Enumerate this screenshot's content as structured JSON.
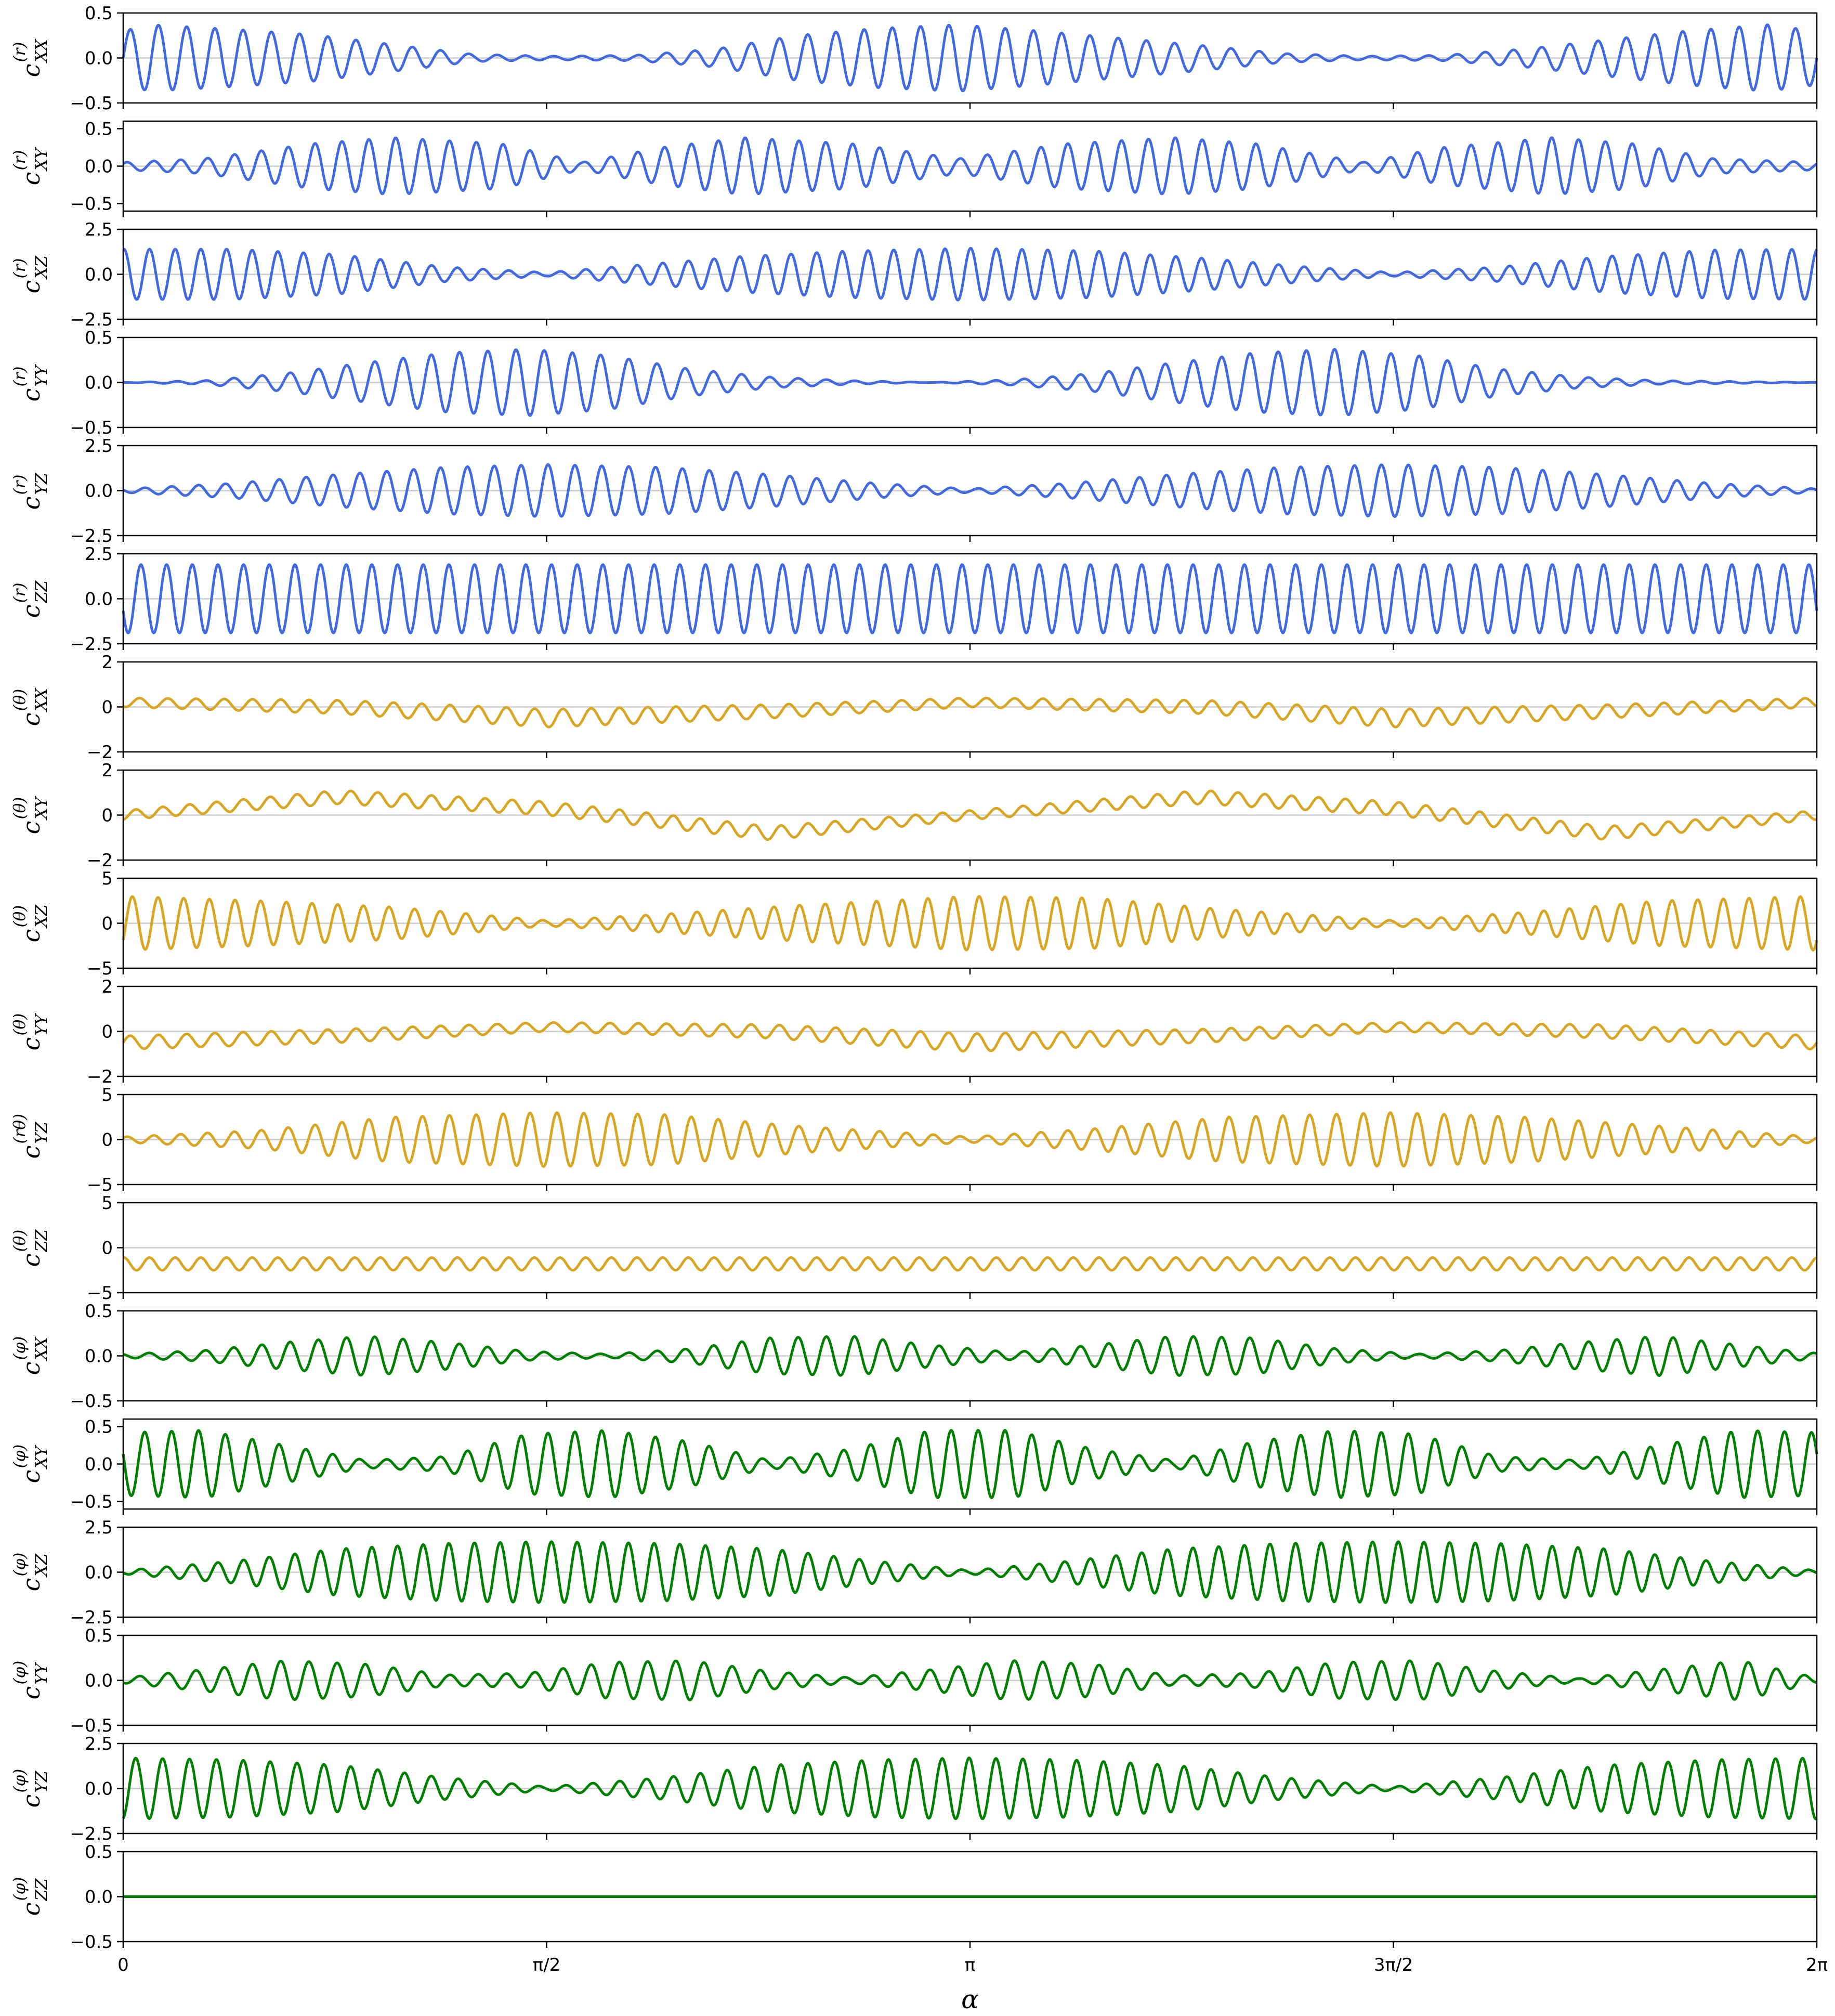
{
  "chart_data": {
    "type": "line",
    "layout": "18 stacked subplots sharing the x-axis",
    "xlabel": "α",
    "xlim": [
      0,
      6.283185307
    ],
    "xticks": [
      {
        "value": 0,
        "label": "0"
      },
      {
        "value": 1.570796327,
        "label": "π/2"
      },
      {
        "value": 3.141592654,
        "label": "π"
      },
      {
        "value": 4.71238898,
        "label": "3π/2"
      },
      {
        "value": 6.283185307,
        "label": "2π"
      }
    ],
    "zero_reference_line": "light gray line at y = 0",
    "colors": {
      "r": "#4169E1",
      "theta": "#DAA520",
      "phi": "#008000",
      "zero_line": "#cccccc"
    },
    "panels": [
      {
        "ylabel": {
          "base": "c",
          "sup": "(r)",
          "sub": "XX"
        },
        "color": "#4169E1",
        "ylim": [
          -0.5,
          0.5
        ],
        "yticks": [
          "0.5",
          "0.0",
          "−0.5"
        ],
        "series": {
          "x": [
            0.0,
            0.1,
            0.4,
            0.7,
            1.0,
            1.3,
            1.6,
            1.9,
            2.2,
            2.5,
            2.8,
            3.1,
            3.4,
            3.7,
            4.0,
            4.3,
            4.6,
            4.9,
            5.2,
            5.5,
            5.8,
            6.1,
            6.28
          ],
          "amplitude": [
            0.3,
            0.37,
            0.32,
            0.26,
            0.15,
            0.04,
            0.02,
            0.03,
            0.1,
            0.25,
            0.33,
            0.37,
            0.3,
            0.22,
            0.14,
            0.05,
            0.02,
            0.03,
            0.1,
            0.2,
            0.3,
            0.37,
            0.3
          ]
        }
      },
      {
        "ylabel": {
          "base": "c",
          "sup": "(r)",
          "sub": "XY"
        },
        "color": "#4169E1",
        "ylim": [
          -0.6,
          0.6
        ],
        "yticks": [
          "0.5",
          "0.0",
          "−0.5"
        ],
        "series": {
          "x": [
            0.0,
            0.3,
            0.7,
            1.0,
            1.4,
            1.7,
            2.0,
            2.3,
            2.7,
            3.1,
            3.5,
            3.9,
            4.2,
            4.6,
            4.9,
            5.3,
            5.6,
            5.9,
            6.28
          ],
          "amplitude": [
            0.05,
            0.1,
            0.3,
            0.38,
            0.3,
            0.05,
            0.25,
            0.38,
            0.3,
            0.1,
            0.3,
            0.38,
            0.3,
            0.05,
            0.25,
            0.38,
            0.3,
            0.1,
            0.05
          ]
        }
      },
      {
        "ylabel": {
          "base": "c",
          "sup": "(r)",
          "sub": "XZ"
        },
        "color": "#4169E1",
        "ylim": [
          -2.5,
          2.5
        ],
        "yticks": [
          "2.5",
          "0.0",
          "−2.5"
        ],
        "series": {
          "x": [
            0.0,
            0.4,
            0.8,
            1.2,
            1.57,
            1.9,
            2.3,
            2.7,
            3.14,
            3.6,
            4.0,
            4.4,
            4.71,
            5.1,
            5.5,
            5.9,
            6.28
          ],
          "amplitude": [
            1.4,
            1.4,
            1.1,
            0.4,
            0.1,
            0.5,
            1.0,
            1.3,
            1.45,
            1.3,
            0.9,
            0.4,
            0.1,
            0.4,
            1.0,
            1.35,
            1.4
          ]
        }
      },
      {
        "ylabel": {
          "base": "c",
          "sup": "(r)",
          "sub": "YY"
        },
        "color": "#4169E1",
        "ylim": [
          -0.5,
          0.5
        ],
        "yticks": [
          "0.5",
          "0.0",
          "−0.5"
        ],
        "series": {
          "x": [
            0.0,
            0.3,
            0.6,
            0.9,
            1.2,
            1.5,
            1.8,
            2.1,
            2.4,
            2.7,
            3.0,
            3.3,
            3.6,
            3.9,
            4.2,
            4.5,
            4.8,
            5.1,
            5.4,
            5.7,
            6.0,
            6.28
          ],
          "amplitude": [
            0.0,
            0.02,
            0.1,
            0.22,
            0.33,
            0.37,
            0.3,
            0.15,
            0.06,
            0.02,
            0.0,
            0.03,
            0.1,
            0.22,
            0.33,
            0.37,
            0.3,
            0.15,
            0.06,
            0.02,
            0.01,
            0.0
          ]
        }
      },
      {
        "ylabel": {
          "base": "c",
          "sup": "(r)",
          "sub": "YZ"
        },
        "color": "#4169E1",
        "ylim": [
          -2.5,
          2.5
        ],
        "yticks": [
          "2.5",
          "0.0",
          "−2.5"
        ],
        "series": {
          "x": [
            0.0,
            0.4,
            0.8,
            1.2,
            1.57,
            2.0,
            2.4,
            2.8,
            3.14,
            3.5,
            3.9,
            4.3,
            4.71,
            5.1,
            5.5,
            5.9,
            6.28
          ],
          "amplitude": [
            0.1,
            0.4,
            0.9,
            1.3,
            1.45,
            1.3,
            0.9,
            0.4,
            0.1,
            0.4,
            0.9,
            1.3,
            1.45,
            1.3,
            0.9,
            0.4,
            0.1
          ]
        }
      },
      {
        "ylabel": {
          "base": "c",
          "sup": "(r)",
          "sub": "ZZ"
        },
        "color": "#4169E1",
        "ylim": [
          -2.5,
          2.5
        ],
        "yticks": [
          "2.5",
          "0.0",
          "−2.5"
        ],
        "series": {
          "x": [
            0.0,
            6.28
          ],
          "amplitude": [
            1.9,
            1.9
          ]
        }
      },
      {
        "ylabel": {
          "base": "c",
          "sup": "(θ)",
          "sub": "XX"
        },
        "color": "#DAA520",
        "ylim": [
          -2,
          2
        ],
        "yticks": [
          "2",
          "0",
          "−2"
        ],
        "series": {
          "x": [
            0.0,
            0.8,
            1.57,
            2.4,
            3.14,
            4.0,
            4.71,
            5.5,
            6.28
          ],
          "center": [
            0.2,
            0.0,
            -0.5,
            -0.2,
            0.2,
            0.0,
            -0.5,
            -0.2,
            0.2
          ],
          "amplitude": [
            0.2,
            0.3,
            0.4,
            0.3,
            0.2,
            0.3,
            0.4,
            0.3,
            0.2
          ]
        }
      },
      {
        "ylabel": {
          "base": "c",
          "sup": "(θ)",
          "sub": "XY"
        },
        "color": "#DAA520",
        "ylim": [
          -2,
          2
        ],
        "yticks": [
          "2",
          "0",
          "−2"
        ],
        "series": {
          "x": [
            0.0,
            0.8,
            1.57,
            2.4,
            3.14,
            4.0,
            4.71,
            5.5,
            6.28
          ],
          "center": [
            0.0,
            0.8,
            0.3,
            -0.8,
            0.0,
            0.8,
            0.3,
            -0.8,
            0.0
          ],
          "amplitude": [
            0.2,
            0.3,
            0.3,
            0.3,
            0.2,
            0.3,
            0.3,
            0.3,
            0.2
          ]
        }
      },
      {
        "ylabel": {
          "base": "c",
          "sup": "(θ)",
          "sub": "XZ"
        },
        "color": "#DAA520",
        "ylim": [
          -5,
          5
        ],
        "yticks": [
          "5",
          "0",
          "−5"
        ],
        "series": {
          "x": [
            0.0,
            0.5,
            1.0,
            1.57,
            2.0,
            2.5,
            3.14,
            3.6,
            4.1,
            4.71,
            5.2,
            5.7,
            6.28
          ],
          "amplitude": [
            3.0,
            2.5,
            1.8,
            0.3,
            1.0,
            2.0,
            3.0,
            2.8,
            1.5,
            0.3,
            1.2,
            2.5,
            3.0
          ]
        }
      },
      {
        "ylabel": {
          "base": "c",
          "sup": "(θ)",
          "sub": "YY"
        },
        "color": "#DAA520",
        "ylim": [
          -2,
          2
        ],
        "yticks": [
          "2",
          "0",
          "−2"
        ],
        "series": {
          "x": [
            0.0,
            0.8,
            1.57,
            2.4,
            3.14,
            4.0,
            4.71,
            5.5,
            6.28
          ],
          "center": [
            -0.5,
            -0.2,
            0.2,
            0.0,
            -0.5,
            -0.2,
            0.2,
            0.0,
            -0.5
          ],
          "amplitude": [
            0.3,
            0.3,
            0.2,
            0.3,
            0.4,
            0.3,
            0.2,
            0.3,
            0.3
          ]
        }
      },
      {
        "ylabel": {
          "base": "c",
          "sup": "(rθ)",
          "sub": "YZ"
        },
        "color": "#DAA520",
        "ylim": [
          -5,
          5
        ],
        "yticks": [
          "5",
          "0",
          "−5"
        ],
        "series": {
          "x": [
            0.0,
            0.5,
            1.0,
            1.57,
            2.0,
            2.5,
            3.14,
            3.6,
            4.1,
            4.71,
            5.2,
            5.7,
            6.28
          ],
          "amplitude": [
            0.3,
            1.0,
            2.5,
            3.0,
            2.8,
            1.5,
            0.3,
            1.2,
            2.5,
            3.0,
            2.5,
            1.5,
            0.3
          ]
        }
      },
      {
        "ylabel": {
          "base": "c",
          "sup": "(θ)",
          "sub": "ZZ"
        },
        "color": "#DAA520",
        "ylim": [
          -5,
          5
        ],
        "yticks": [
          "5",
          "0",
          "−5"
        ],
        "series": {
          "x": [
            0.0,
            6.28
          ],
          "center": [
            -1.8,
            -1.8
          ],
          "amplitude": [
            0.7,
            0.7
          ]
        }
      },
      {
        "ylabel": {
          "base": "c",
          "sup": "(φ)",
          "sub": "XX"
        },
        "color": "#008000",
        "ylim": [
          -0.5,
          0.5
        ],
        "yticks": [
          "0.5",
          "0.0",
          "−0.5"
        ],
        "series": {
          "x": [
            0.0,
            0.3,
            0.6,
            0.9,
            1.2,
            1.5,
            1.8,
            2.1,
            2.4,
            2.7,
            3.0,
            3.3,
            3.6,
            3.9,
            4.2,
            4.5,
            4.8,
            5.1,
            5.4,
            5.7,
            6.0,
            6.28
          ],
          "amplitude": [
            0.02,
            0.06,
            0.15,
            0.22,
            0.15,
            0.05,
            0.02,
            0.08,
            0.2,
            0.22,
            0.12,
            0.04,
            0.12,
            0.22,
            0.2,
            0.08,
            0.02,
            0.06,
            0.15,
            0.22,
            0.12,
            0.03
          ]
        }
      },
      {
        "ylabel": {
          "base": "c",
          "sup": "(φ)",
          "sub": "XY"
        },
        "color": "#008000",
        "ylim": [
          -0.6,
          0.6
        ],
        "yticks": [
          "0.5",
          "0.0",
          "−0.5"
        ],
        "series": {
          "x": [
            0.0,
            0.3,
            0.6,
            0.9,
            1.2,
            1.5,
            1.8,
            2.1,
            2.4,
            2.7,
            3.0,
            3.3,
            3.6,
            3.9,
            4.2,
            4.5,
            4.8,
            5.1,
            5.4,
            5.7,
            6.0,
            6.28
          ],
          "amplitude": [
            0.42,
            0.45,
            0.25,
            0.05,
            0.1,
            0.4,
            0.45,
            0.3,
            0.05,
            0.2,
            0.45,
            0.45,
            0.2,
            0.05,
            0.3,
            0.45,
            0.4,
            0.1,
            0.05,
            0.25,
            0.45,
            0.42
          ]
        }
      },
      {
        "ylabel": {
          "base": "c",
          "sup": "(φ)",
          "sub": "XZ"
        },
        "color": "#008000",
        "ylim": [
          -2.5,
          2.5
        ],
        "yticks": [
          "2.5",
          "0.0",
          "−2.5"
        ],
        "series": {
          "x": [
            0.0,
            0.4,
            0.8,
            1.2,
            1.57,
            2.0,
            2.4,
            2.8,
            3.14,
            3.5,
            3.9,
            4.3,
            4.71,
            5.1,
            5.5,
            5.9,
            6.28
          ],
          "amplitude": [
            0.1,
            0.6,
            1.3,
            1.6,
            1.7,
            1.6,
            1.3,
            0.6,
            0.1,
            0.6,
            1.3,
            1.6,
            1.7,
            1.6,
            1.3,
            0.6,
            0.1
          ]
        }
      },
      {
        "ylabel": {
          "base": "c",
          "sup": "(φ)",
          "sub": "YY"
        },
        "color": "#008000",
        "ylim": [
          -0.5,
          0.5
        ],
        "yticks": [
          "0.5",
          "0.0",
          "−0.5"
        ],
        "series": {
          "x": [
            0.0,
            0.3,
            0.6,
            0.9,
            1.2,
            1.5,
            1.8,
            2.1,
            2.4,
            2.7,
            3.0,
            3.3,
            3.6,
            3.9,
            4.2,
            4.5,
            4.8,
            5.1,
            5.4,
            5.7,
            6.0,
            6.28
          ],
          "amplitude": [
            0.03,
            0.12,
            0.22,
            0.18,
            0.06,
            0.08,
            0.2,
            0.22,
            0.1,
            0.03,
            0.12,
            0.22,
            0.18,
            0.05,
            0.08,
            0.2,
            0.22,
            0.1,
            0.02,
            0.12,
            0.22,
            0.03
          ]
        }
      },
      {
        "ylabel": {
          "base": "c",
          "sup": "(φ)",
          "sub": "YZ"
        },
        "color": "#008000",
        "ylim": [
          -2.5,
          2.5
        ],
        "yticks": [
          "2.5",
          "0.0",
          "−2.5"
        ],
        "series": {
          "x": [
            0.0,
            0.4,
            0.8,
            1.2,
            1.57,
            2.0,
            2.4,
            2.8,
            3.14,
            3.5,
            3.9,
            4.3,
            4.71,
            5.1,
            5.5,
            5.9,
            6.28
          ],
          "amplitude": [
            1.7,
            1.6,
            1.3,
            0.6,
            0.1,
            0.6,
            1.3,
            1.6,
            1.7,
            1.6,
            1.3,
            0.6,
            0.1,
            0.6,
            1.3,
            1.6,
            1.7
          ]
        }
      },
      {
        "ylabel": {
          "base": "c",
          "sup": "(φ)",
          "sub": "ZZ"
        },
        "color": "#008000",
        "ylim": [
          -0.5,
          0.5
        ],
        "yticks": [
          "0.5",
          "0.0",
          "−0.5"
        ],
        "series": {
          "x": [
            0.0,
            6.28
          ],
          "values": [
            0.0,
            0.0
          ]
        }
      }
    ]
  }
}
